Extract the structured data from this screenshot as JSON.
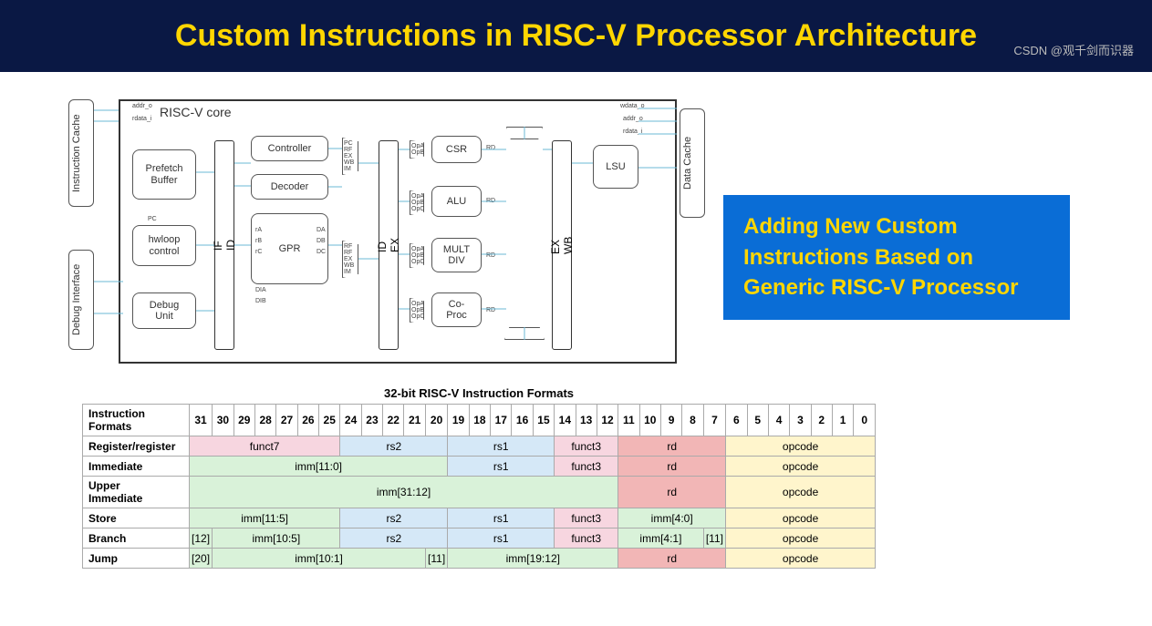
{
  "header": {
    "title": "Custom Instructions in RISC-V Processor Architecture"
  },
  "diagram": {
    "core_label": "RISC-V core",
    "side_labels": {
      "icache": "Instruction Cache",
      "debug": "Debug Interface",
      "dcache": "Data Cache"
    },
    "signals": {
      "addr_o": "addr_o",
      "rdata_i": "rdata_i",
      "wdata_o": "wdata_o",
      "addr_o2": "addr_o",
      "rdata_i2": "rdata_i"
    },
    "blocks": {
      "prefetch": "Prefetch\nBuffer",
      "hwloop": "hwloop\ncontrol",
      "debug_unit": "Debug\nUnit",
      "controller": "Controller",
      "decoder": "Decoder",
      "gpr": "GPR",
      "csr": "CSR",
      "alu": "ALU",
      "multdiv": "MULT\nDIV",
      "coproc": "Co-\nProc",
      "lsu": "LSU"
    },
    "stages": {
      "if_id": "IF\nID",
      "id_ex": "ID\nEX",
      "ex_wb": "EX\nWB"
    },
    "mux_labels": {
      "pc_rf_ex_wb_im": [
        "PC",
        "RF",
        "EX",
        "WB",
        "IM"
      ],
      "rf_ex_wb_im": [
        "RF",
        "RF",
        "EX",
        "WB",
        "IM"
      ],
      "opa_opb": [
        "OpA",
        "OpB"
      ],
      "opa_opb_opc": [
        "OpA",
        "OpB",
        "OpC"
      ],
      "rd": "RD"
    },
    "gpr_ports": {
      "ra": "rA",
      "rb": "rB",
      "rc": "rC",
      "dia": "DIA",
      "dib": "DIB",
      "da": "DA",
      "db": "DB",
      "dc": "DC"
    },
    "hwloop_pc": "PC"
  },
  "callout": {
    "text": "Adding New Custom\nInstructions Based on\nGeneric RISC-V  Processor"
  },
  "table": {
    "title": "32-bit RISC-V Instruction Formats",
    "bit_header": "Instruction\nFormats",
    "bits": [
      "31",
      "30",
      "29",
      "28",
      "27",
      "26",
      "25",
      "24",
      "23",
      "22",
      "21",
      "20",
      "19",
      "18",
      "17",
      "16",
      "15",
      "14",
      "13",
      "12",
      "11",
      "10",
      "9",
      "8",
      "7",
      "6",
      "5",
      "4",
      "3",
      "2",
      "1",
      "0"
    ],
    "rows": [
      {
        "name": "Register/register",
        "cells": [
          {
            "span": 7,
            "text": "funct7",
            "bg": "#f7d6e0"
          },
          {
            "span": 5,
            "text": "rs2",
            "bg": "#d5e8f7"
          },
          {
            "span": 5,
            "text": "rs1",
            "bg": "#d5e8f7"
          },
          {
            "span": 3,
            "text": "funct3",
            "bg": "#f7d6e0"
          },
          {
            "span": 5,
            "text": "rd",
            "bg": "#f2b6b6"
          },
          {
            "span": 7,
            "text": "opcode",
            "bg": "#fff5cc"
          }
        ]
      },
      {
        "name": "Immediate",
        "cells": [
          {
            "span": 12,
            "text": "imm[11:0]",
            "bg": "#d9f2d9"
          },
          {
            "span": 5,
            "text": "rs1",
            "bg": "#d5e8f7"
          },
          {
            "span": 3,
            "text": "funct3",
            "bg": "#f7d6e0"
          },
          {
            "span": 5,
            "text": "rd",
            "bg": "#f2b6b6"
          },
          {
            "span": 7,
            "text": "opcode",
            "bg": "#fff5cc"
          }
        ]
      },
      {
        "name": "Upper\nImmediate",
        "cells": [
          {
            "span": 20,
            "text": "imm[31:12]",
            "bg": "#d9f2d9"
          },
          {
            "span": 5,
            "text": "rd",
            "bg": "#f2b6b6"
          },
          {
            "span": 7,
            "text": "opcode",
            "bg": "#fff5cc"
          }
        ]
      },
      {
        "name": "Store",
        "cells": [
          {
            "span": 7,
            "text": "imm[11:5]",
            "bg": "#d9f2d9"
          },
          {
            "span": 5,
            "text": "rs2",
            "bg": "#d5e8f7"
          },
          {
            "span": 5,
            "text": "rs1",
            "bg": "#d5e8f7"
          },
          {
            "span": 3,
            "text": "funct3",
            "bg": "#f7d6e0"
          },
          {
            "span": 5,
            "text": "imm[4:0]",
            "bg": "#d9f2d9"
          },
          {
            "span": 7,
            "text": "opcode",
            "bg": "#fff5cc"
          }
        ]
      },
      {
        "name": "Branch",
        "cells": [
          {
            "span": 1,
            "text": "[12]",
            "bg": "#d9f2d9"
          },
          {
            "span": 6,
            "text": "imm[10:5]",
            "bg": "#d9f2d9"
          },
          {
            "span": 5,
            "text": "rs2",
            "bg": "#d5e8f7"
          },
          {
            "span": 5,
            "text": "rs1",
            "bg": "#d5e8f7"
          },
          {
            "span": 3,
            "text": "funct3",
            "bg": "#f7d6e0"
          },
          {
            "span": 4,
            "text": "imm[4:1]",
            "bg": "#d9f2d9"
          },
          {
            "span": 1,
            "text": "[11]",
            "bg": "#d9f2d9"
          },
          {
            "span": 7,
            "text": "opcode",
            "bg": "#fff5cc"
          }
        ]
      },
      {
        "name": "Jump",
        "cells": [
          {
            "span": 1,
            "text": "[20]",
            "bg": "#d9f2d9"
          },
          {
            "span": 10,
            "text": "imm[10:1]",
            "bg": "#d9f2d9"
          },
          {
            "span": 1,
            "text": "[11]",
            "bg": "#d9f2d9"
          },
          {
            "span": 8,
            "text": "imm[19:12]",
            "bg": "#d9f2d9"
          },
          {
            "span": 5,
            "text": "rd",
            "bg": "#f2b6b6"
          },
          {
            "span": 7,
            "text": "opcode",
            "bg": "#fff5cc"
          }
        ]
      }
    ],
    "colors": {
      "funct": "#f7d6e0",
      "rs": "#d5e8f7",
      "rd": "#f2b6b6",
      "opcode": "#fff5cc",
      "imm": "#d9f2d9"
    }
  },
  "watermark": "CSDN @观千剑而识器"
}
